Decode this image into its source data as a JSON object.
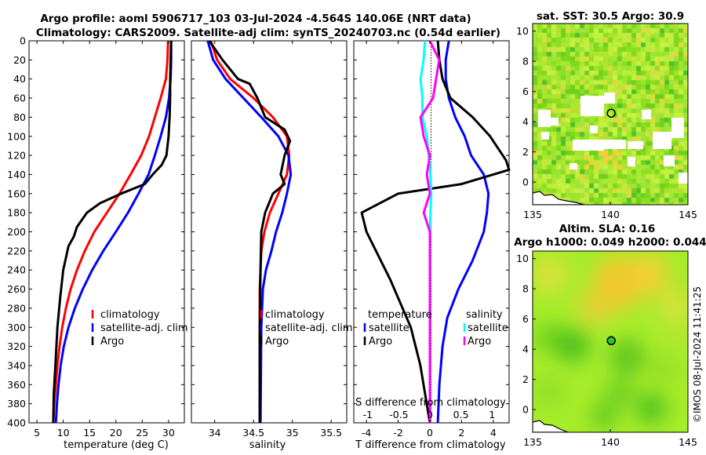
{
  "title_line1": "Argo profile: aoml 5906717_103 03-Jul-2024 -4.564S 140.06E (NRT data)",
  "title_line2": "Climatology: CARS2009. Satellite-adj clim: synTS_20240703.nc (0.54d earlier)",
  "timestamp": "©IMOS 08-Jul-2024 11:41:25",
  "colors": {
    "climatology": "#ff0000",
    "satellite": "#0000ff",
    "argo": "#000000",
    "sat_salinity": "#00ffff",
    "argo_salinity": "#ff00ff"
  },
  "chart_data": [
    {
      "type": "line",
      "name": "temperature",
      "xlabel": "temperature (deg C)",
      "xlim": [
        3.5,
        33
      ],
      "ylim": [
        0,
        400
      ],
      "xticks": [
        5,
        10,
        15,
        20,
        25,
        30
      ],
      "yticks": [
        0,
        20,
        40,
        60,
        80,
        100,
        120,
        140,
        160,
        180,
        200,
        220,
        240,
        260,
        280,
        300,
        320,
        340,
        360,
        380,
        400
      ],
      "legend": [
        "climatology",
        "satellite-adj. clim",
        "Argo"
      ],
      "series": [
        {
          "name": "climatology",
          "color": "#ff0000",
          "points": [
            [
              29.9,
              0
            ],
            [
              29.8,
              20
            ],
            [
              29.5,
              40
            ],
            [
              28.5,
              60
            ],
            [
              27.4,
              80
            ],
            [
              26.3,
              100
            ],
            [
              24.8,
              120
            ],
            [
              22.8,
              140
            ],
            [
              20.7,
              160
            ],
            [
              18.3,
              180
            ],
            [
              15.9,
              200
            ],
            [
              14.1,
              220
            ],
            [
              12.6,
              240
            ],
            [
              11.4,
              260
            ],
            [
              10.5,
              280
            ],
            [
              9.8,
              300
            ],
            [
              9.3,
              320
            ],
            [
              8.9,
              340
            ],
            [
              8.6,
              360
            ],
            [
              8.3,
              380
            ],
            [
              8.1,
              400
            ]
          ]
        },
        {
          "name": "satellite-adj. clim",
          "color": "#0000ff",
          "points": [
            [
              30.5,
              0
            ],
            [
              30.5,
              20
            ],
            [
              30.4,
              40
            ],
            [
              30.1,
              60
            ],
            [
              29.5,
              80
            ],
            [
              28.5,
              100
            ],
            [
              27.4,
              120
            ],
            [
              26.2,
              140
            ],
            [
              24.3,
              160
            ],
            [
              22.3,
              180
            ],
            [
              20.0,
              200
            ],
            [
              17.6,
              220
            ],
            [
              15.5,
              240
            ],
            [
              13.7,
              260
            ],
            [
              12.2,
              280
            ],
            [
              11.0,
              300
            ],
            [
              10.1,
              320
            ],
            [
              9.5,
              340
            ],
            [
              9.1,
              360
            ],
            [
              8.8,
              380
            ],
            [
              8.6,
              400
            ]
          ]
        },
        {
          "name": "Argo",
          "color": "#000000",
          "points": [
            [
              30.5,
              0
            ],
            [
              30.4,
              20
            ],
            [
              30.3,
              40
            ],
            [
              30.3,
              60
            ],
            [
              30.2,
              80
            ],
            [
              30.0,
              100
            ],
            [
              29.6,
              120
            ],
            [
              28.7,
              130
            ],
            [
              27.0,
              140
            ],
            [
              25.5,
              150
            ],
            [
              21.0,
              160
            ],
            [
              17.0,
              170
            ],
            [
              14.5,
              180
            ],
            [
              12.6,
              195
            ],
            [
              12.0,
              205
            ],
            [
              11.0,
              215
            ],
            [
              10.0,
              240
            ],
            [
              9.4,
              270
            ],
            [
              8.9,
              300
            ],
            [
              8.5,
              340
            ],
            [
              8.2,
              370
            ],
            [
              8.1,
              400
            ]
          ]
        }
      ]
    },
    {
      "type": "line",
      "name": "salinity",
      "xlabel": "salinity",
      "xlim": [
        33.7,
        35.7
      ],
      "ylim": [
        0,
        400
      ],
      "xticks": [
        34,
        34.5,
        35,
        35.5
      ],
      "legend": [
        "climatology",
        "satellite-adj. clim",
        "Argo"
      ],
      "series": [
        {
          "name": "climatology",
          "color": "#ff0000",
          "points": [
            [
              33.95,
              0
            ],
            [
              34.03,
              20
            ],
            [
              34.2,
              40
            ],
            [
              34.5,
              60
            ],
            [
              34.75,
              80
            ],
            [
              34.93,
              100
            ],
            [
              34.96,
              120
            ],
            [
              34.93,
              140
            ],
            [
              34.82,
              160
            ],
            [
              34.71,
              180
            ],
            [
              34.64,
              200
            ],
            [
              34.6,
              220
            ],
            [
              34.58,
              260
            ],
            [
              34.58,
              300
            ],
            [
              34.58,
              400
            ]
          ]
        },
        {
          "name": "satellite-adj. clim",
          "color": "#0000ff",
          "points": [
            [
              33.91,
              0
            ],
            [
              33.98,
              20
            ],
            [
              34.14,
              40
            ],
            [
              34.37,
              60
            ],
            [
              34.6,
              80
            ],
            [
              34.82,
              100
            ],
            [
              34.95,
              120
            ],
            [
              34.98,
              140
            ],
            [
              34.93,
              160
            ],
            [
              34.87,
              180
            ],
            [
              34.79,
              200
            ],
            [
              34.73,
              220
            ],
            [
              34.66,
              240
            ],
            [
              34.62,
              260
            ],
            [
              34.6,
              300
            ],
            [
              34.59,
              400
            ]
          ]
        },
        {
          "name": "Argo",
          "color": "#000000",
          "points": [
            [
              33.93,
              0
            ],
            [
              34.1,
              20
            ],
            [
              34.3,
              40
            ],
            [
              34.45,
              45
            ],
            [
              34.55,
              60
            ],
            [
              34.65,
              80
            ],
            [
              34.9,
              93
            ],
            [
              34.97,
              105
            ],
            [
              34.9,
              120
            ],
            [
              34.85,
              140
            ],
            [
              34.9,
              150
            ],
            [
              34.75,
              160
            ],
            [
              34.65,
              180
            ],
            [
              34.6,
              200
            ],
            [
              34.59,
              240
            ],
            [
              34.58,
              300
            ],
            [
              34.58,
              400
            ]
          ]
        }
      ]
    },
    {
      "type": "line",
      "name": "difference",
      "xlabel": "T difference from climatology",
      "xlabel_top": "S difference from climatology",
      "xlim": [
        -4.8,
        5.0
      ],
      "ylim": [
        0,
        400
      ],
      "xticks": [
        -4,
        -2,
        0,
        2,
        4
      ],
      "xticks_top": [
        -1,
        -0.5,
        0,
        0.5,
        1
      ],
      "xticklabels_top": [
        "-1",
        "-0.5",
        "0",
        "0.5",
        "1"
      ],
      "legend_titles": [
        "temperature",
        "salinity"
      ],
      "legend": [
        "satellite",
        "Argo",
        "satellite",
        "Argo"
      ],
      "series": [
        {
          "name": "temperature satellite",
          "color": "#0000ff",
          "points": [
            [
              1.2,
              0
            ],
            [
              1.0,
              20
            ],
            [
              1.0,
              40
            ],
            [
              1.2,
              60
            ],
            [
              1.6,
              80
            ],
            [
              2.2,
              100
            ],
            [
              2.6,
              120
            ],
            [
              3.4,
              140
            ],
            [
              3.7,
              160
            ],
            [
              3.6,
              180
            ],
            [
              3.4,
              200
            ],
            [
              2.7,
              230
            ],
            [
              1.8,
              260
            ],
            [
              1.1,
              290
            ],
            [
              0.8,
              320
            ],
            [
              0.6,
              360
            ],
            [
              0.5,
              400
            ]
          ]
        },
        {
          "name": "temperature Argo",
          "color": "#000000",
          "points": [
            [
              0.5,
              0
            ],
            [
              0.6,
              20
            ],
            [
              0.8,
              40
            ],
            [
              1.3,
              60
            ],
            [
              2.7,
              80
            ],
            [
              3.8,
              100
            ],
            [
              4.8,
              125
            ],
            [
              5.0,
              135
            ],
            [
              4.0,
              140
            ],
            [
              2.0,
              150
            ],
            [
              -2.0,
              160
            ],
            [
              -4.3,
              180
            ],
            [
              -4.0,
              200
            ],
            [
              -2.5,
              250
            ],
            [
              -1.2,
              300
            ],
            [
              -0.6,
              340
            ],
            [
              0,
              400
            ]
          ]
        },
        {
          "name": "salinity satellite",
          "color": "#00ffff",
          "points": [
            [
              -0.08,
              0
            ],
            [
              -0.1,
              20
            ],
            [
              -0.15,
              40
            ],
            [
              -0.12,
              60
            ],
            [
              -0.12,
              80
            ],
            [
              -0.05,
              100
            ],
            [
              -0.02,
              120
            ],
            [
              0.01,
              140
            ],
            [
              0.02,
              160
            ],
            [
              0.01,
              180
            ],
            [
              0.0,
              200
            ],
            [
              0.0,
              400
            ]
          ]
        },
        {
          "name": "salinity Argo",
          "color": "#ff00ff",
          "points": [
            [
              0.0,
              0
            ],
            [
              0.15,
              20
            ],
            [
              0.1,
              40
            ],
            [
              0.05,
              60
            ],
            [
              -0.15,
              80
            ],
            [
              -0.1,
              100
            ],
            [
              0.0,
              120
            ],
            [
              -0.05,
              140
            ],
            [
              0.0,
              160
            ],
            [
              -0.1,
              180
            ],
            [
              0.0,
              200
            ],
            [
              0.0,
              400
            ]
          ]
        }
      ]
    },
    {
      "type": "heatmap",
      "name": "sst-map",
      "title": "sat. SST: 30.5 Argo: 30.9",
      "xlim": [
        135,
        145
      ],
      "ylim": [
        -1.5,
        10.5
      ],
      "xticks": [
        135,
        140,
        145
      ],
      "yticks": [
        0,
        2,
        4,
        6,
        8,
        10
      ],
      "marker": [
        140.06,
        4.564
      ]
    },
    {
      "type": "heatmap",
      "name": "sla-map",
      "title_line1": "Altim. SLA: 0.16",
      "title_line2": "Argo h1000: 0.049 h2000: 0.044",
      "xlim": [
        135,
        145
      ],
      "ylim": [
        -1.5,
        10.5
      ],
      "xticks": [
        135,
        140,
        145
      ],
      "yticks": [
        0,
        2,
        4,
        6,
        8,
        10
      ],
      "marker": [
        140.06,
        4.564
      ]
    }
  ]
}
